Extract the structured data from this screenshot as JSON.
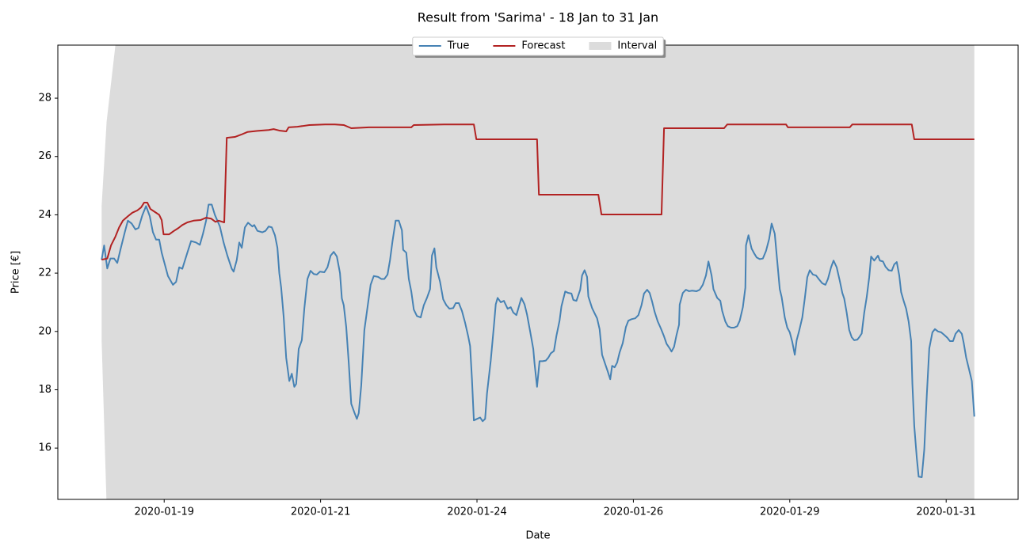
{
  "chart_data": {
    "type": "line",
    "title": "Result from 'Sarima' - 18 Jan to 31 Jan",
    "xlabel": "Date",
    "ylabel": "Price [€]",
    "xlim": [
      -0.7,
      14.65
    ],
    "ylim": [
      14.24,
      29.82
    ],
    "xticks": [
      {
        "value": 1,
        "label": "2020-01-19"
      },
      {
        "value": 3.5,
        "label": "2020-01-21"
      },
      {
        "value": 6,
        "label": "2020-01-24"
      },
      {
        "value": 8.5,
        "label": "2020-01-26"
      },
      {
        "value": 11,
        "label": "2020-01-29"
      },
      {
        "value": 13.5,
        "label": "2020-01-31"
      }
    ],
    "yticks": [
      16,
      18,
      20,
      22,
      24,
      26,
      28
    ],
    "grid": false,
    "legend": "upper center",
    "series": [
      {
        "name": "True",
        "type": "line",
        "color": "#4682b4",
        "x": [
          0,
          0.04,
          0.09,
          0.14,
          0.2,
          0.25,
          0.3,
          0.37,
          0.42,
          0.48,
          0.54,
          0.59,
          0.65,
          0.71,
          0.77,
          0.82,
          0.87,
          0.92,
          0.96,
          1.01,
          1.06,
          1.14,
          1.19,
          1.24,
          1.29,
          1.37,
          1.43,
          1.51,
          1.57,
          1.62,
          1.67,
          1.71,
          1.76,
          1.81,
          1.89,
          1.95,
          2.01,
          2.08,
          2.11,
          2.16,
          2.2,
          2.24,
          2.29,
          2.34,
          2.41,
          2.44,
          2.49,
          2.57,
          2.62,
          2.67,
          2.72,
          2.77,
          2.81,
          2.84,
          2.87,
          2.91,
          2.95,
          3.0,
          3.04,
          3.08,
          3.11,
          3.15,
          3.2,
          3.24,
          3.29,
          3.34,
          3.39,
          3.44,
          3.49,
          3.56,
          3.61,
          3.66,
          3.71,
          3.76,
          3.81,
          3.84,
          3.87,
          3.91,
          3.95,
          3.99,
          4.04,
          4.08,
          4.11,
          4.15,
          4.2,
          4.25,
          4.3,
          4.35,
          4.42,
          4.47,
          4.52,
          4.57,
          4.61,
          4.65,
          4.7,
          4.75,
          4.8,
          4.82,
          4.87,
          4.91,
          4.95,
          4.99,
          5.04,
          5.1,
          5.15,
          5.2,
          5.25,
          5.28,
          5.32,
          5.35,
          5.41,
          5.46,
          5.51,
          5.56,
          5.62,
          5.66,
          5.71,
          5.76,
          5.81,
          5.86,
          5.89,
          5.92,
          5.95,
          6.0,
          6.05,
          6.09,
          6.13,
          6.16,
          6.22,
          6.27,
          6.3,
          6.33,
          6.38,
          6.43,
          6.49,
          6.54,
          6.58,
          6.63,
          6.68,
          6.71,
          6.76,
          6.8,
          6.85,
          6.9,
          6.92,
          6.96,
          7.0,
          7.05,
          7.1,
          7.14,
          7.18,
          7.23,
          7.27,
          7.32,
          7.35,
          7.41,
          7.46,
          7.51,
          7.54,
          7.59,
          7.65,
          7.68,
          7.72,
          7.76,
          7.78,
          7.84,
          7.89,
          7.92,
          7.96,
          8.0,
          8.05,
          8.09,
          8.13,
          8.16,
          8.2,
          8.24,
          8.28,
          8.33,
          8.38,
          8.42,
          8.47,
          8.53,
          8.58,
          8.63,
          8.67,
          8.72,
          8.76,
          8.8,
          8.84,
          8.89,
          8.94,
          8.99,
          9.03,
          9.08,
          9.11,
          9.15,
          9.19,
          9.23,
          9.24,
          9.29,
          9.34,
          9.39,
          9.44,
          9.51,
          9.56,
          9.61,
          9.66,
          9.7,
          9.75,
          9.78,
          9.84,
          9.89,
          9.92,
          9.97,
          10.01,
          10.06,
          10.11,
          10.16,
          10.2,
          10.25,
          10.29,
          10.3,
          10.34,
          10.39,
          10.43,
          10.47,
          10.52,
          10.57,
          10.62,
          10.67,
          10.71,
          10.76,
          10.8,
          10.84,
          10.87,
          10.92,
          10.96,
          11.0,
          11.04,
          11.08,
          11.11,
          11.15,
          11.2,
          11.24,
          11.28,
          11.32,
          11.37,
          11.42,
          11.47,
          11.52,
          11.57,
          11.61,
          11.66,
          11.7,
          11.75,
          11.8,
          11.84,
          11.87,
          11.91,
          11.95,
          11.99,
          12.03,
          12.08,
          12.11,
          12.15,
          12.19,
          12.23,
          12.27,
          12.3,
          12.35,
          12.41,
          12.44,
          12.49,
          12.53,
          12.58,
          12.63,
          12.67,
          12.71,
          12.75,
          12.78,
          12.82,
          12.86,
          12.9,
          12.94,
          12.96,
          12.99,
          13.03,
          13.06,
          13.11,
          13.15,
          13.19,
          13.23,
          13.28,
          13.32,
          13.37,
          13.42,
          13.47,
          13.52,
          13.56,
          13.61,
          13.65,
          13.7,
          13.75,
          13.78,
          13.82,
          13.87,
          13.91,
          13.95
        ],
        "values": [
          22.46,
          22.95,
          22.16,
          22.5,
          22.5,
          22.35,
          22.8,
          23.4,
          23.8,
          23.7,
          23.5,
          23.55,
          23.98,
          24.3,
          23.95,
          23.4,
          23.15,
          23.15,
          22.7,
          22.3,
          21.9,
          21.6,
          21.7,
          22.2,
          22.15,
          22.7,
          23.1,
          23.05,
          22.97,
          23.35,
          23.8,
          24.35,
          24.35,
          24.0,
          23.6,
          23.05,
          22.6,
          22.15,
          22.05,
          22.45,
          23.05,
          22.87,
          23.57,
          23.73,
          23.6,
          23.65,
          23.45,
          23.4,
          23.45,
          23.6,
          23.57,
          23.3,
          22.87,
          22.0,
          21.5,
          20.5,
          19.1,
          18.3,
          18.55,
          18.1,
          18.2,
          19.4,
          19.7,
          20.78,
          21.8,
          22.08,
          21.97,
          21.95,
          22.05,
          22.03,
          22.2,
          22.6,
          22.73,
          22.57,
          22.0,
          21.13,
          20.9,
          20.15,
          18.93,
          17.52,
          17.22,
          17.0,
          17.2,
          18.15,
          20.05,
          20.83,
          21.6,
          21.9,
          21.87,
          21.8,
          21.8,
          21.95,
          22.45,
          23.1,
          23.8,
          23.8,
          23.47,
          22.8,
          22.7,
          21.8,
          21.37,
          20.75,
          20.53,
          20.48,
          20.9,
          21.15,
          21.45,
          22.6,
          22.85,
          22.2,
          21.7,
          21.1,
          20.9,
          20.78,
          20.8,
          20.97,
          20.97,
          20.7,
          20.3,
          19.83,
          19.5,
          18.35,
          16.95,
          17.0,
          17.05,
          16.92,
          17.0,
          17.87,
          19.0,
          20.18,
          20.93,
          21.15,
          21.0,
          21.05,
          20.78,
          20.83,
          20.65,
          20.56,
          20.93,
          21.15,
          20.93,
          20.58,
          20.0,
          19.4,
          18.9,
          18.1,
          18.98,
          18.98,
          19.0,
          19.1,
          19.25,
          19.33,
          19.85,
          20.37,
          20.86,
          21.37,
          21.32,
          21.3,
          21.08,
          21.05,
          21.43,
          21.92,
          22.1,
          21.87,
          21.2,
          20.8,
          20.58,
          20.45,
          20.08,
          19.2,
          18.88,
          18.63,
          18.36,
          18.82,
          18.77,
          18.93,
          19.28,
          19.6,
          20.15,
          20.37,
          20.42,
          20.45,
          20.56,
          20.9,
          21.3,
          21.43,
          21.32,
          21.02,
          20.67,
          20.34,
          20.1,
          19.83,
          19.58,
          19.42,
          19.31,
          19.47,
          19.88,
          20.23,
          20.92,
          21.32,
          21.43,
          21.38,
          21.4,
          21.38,
          21.43,
          21.6,
          21.92,
          22.4,
          21.92,
          21.45,
          21.15,
          21.05,
          20.7,
          20.34,
          20.18,
          20.13,
          20.13,
          20.18,
          20.37,
          20.83,
          21.5,
          22.95,
          23.3,
          22.84,
          22.68,
          22.54,
          22.48,
          22.5,
          22.76,
          23.17,
          23.7,
          23.35,
          22.4,
          21.45,
          21.18,
          20.48,
          20.13,
          19.97,
          19.64,
          19.2,
          19.7,
          20.02,
          20.48,
          21.13,
          21.86,
          22.1,
          21.95,
          21.92,
          21.78,
          21.65,
          21.6,
          21.8,
          22.2,
          22.43,
          22.2,
          21.73,
          21.32,
          21.13,
          20.64,
          20.05,
          19.8,
          19.7,
          19.72,
          19.8,
          19.93,
          20.64,
          21.18,
          21.86,
          22.57,
          22.43,
          22.6,
          22.43,
          22.4,
          22.22,
          22.1,
          22.08,
          22.3,
          22.38,
          21.92,
          21.35,
          21.05,
          20.78,
          20.34,
          19.67,
          18.2,
          16.76,
          15.67,
          15.02,
          15.0,
          15.95,
          17.8,
          19.42,
          19.97,
          20.08,
          20.0,
          19.97,
          19.88,
          19.78,
          19.67,
          19.67,
          19.92,
          20.05,
          19.92,
          19.61,
          19.1,
          18.66,
          18.3,
          17.08
        ]
      },
      {
        "name": "Forecast",
        "type": "line",
        "color": "#b22222",
        "x": [
          0,
          0.09,
          0.15,
          0.22,
          0.28,
          0.34,
          0.42,
          0.49,
          0.57,
          0.63,
          0.68,
          0.73,
          0.78,
          0.85,
          0.92,
          0.96,
          0.99,
          1.08,
          1.15,
          1.23,
          1.29,
          1.37,
          1.47,
          1.58,
          1.67,
          1.75,
          1.82,
          1.87,
          1.96,
          2.0,
          2.13,
          2.23,
          2.33,
          2.49,
          2.67,
          2.75,
          2.84,
          2.95,
          2.99,
          3.13,
          3.32,
          3.57,
          3.73,
          3.87,
          3.99,
          4.27,
          4.71,
          4.95,
          4.99,
          5.47,
          5.95,
          5.99,
          6.96,
          6.99,
          7.94,
          7.99,
          8.95,
          8.99,
          9.95,
          10.0,
          10.94,
          10.97,
          11.96,
          12.0,
          12.95,
          12.99,
          13.95
        ],
        "values": [
          22.46,
          22.5,
          22.95,
          23.25,
          23.57,
          23.8,
          23.95,
          24.07,
          24.15,
          24.25,
          24.42,
          24.42,
          24.2,
          24.1,
          24.0,
          23.82,
          23.33,
          23.33,
          23.44,
          23.55,
          23.65,
          23.74,
          23.8,
          23.82,
          23.9,
          23.87,
          23.76,
          23.8,
          23.74,
          26.64,
          26.67,
          26.75,
          26.84,
          26.88,
          26.91,
          26.94,
          26.89,
          26.86,
          27.0,
          27.02,
          27.08,
          27.1,
          27.1,
          27.08,
          26.97,
          27.0,
          27.0,
          27.0,
          27.08,
          27.1,
          27.1,
          26.59,
          26.59,
          24.69,
          24.69,
          24.01,
          24.01,
          26.97,
          26.97,
          27.1,
          27.1,
          27.0,
          27.0,
          27.1,
          27.1,
          26.59,
          26.59
        ]
      },
      {
        "name": "Interval",
        "type": "area",
        "color": "#dcdcdc",
        "x": [
          0,
          0.08,
          0.23,
          13.95
        ],
        "lower": [
          19.7,
          14.0,
          13.5,
          13.5
        ],
        "upper": [
          24.3,
          27.2,
          30.0,
          30.0
        ]
      }
    ]
  }
}
